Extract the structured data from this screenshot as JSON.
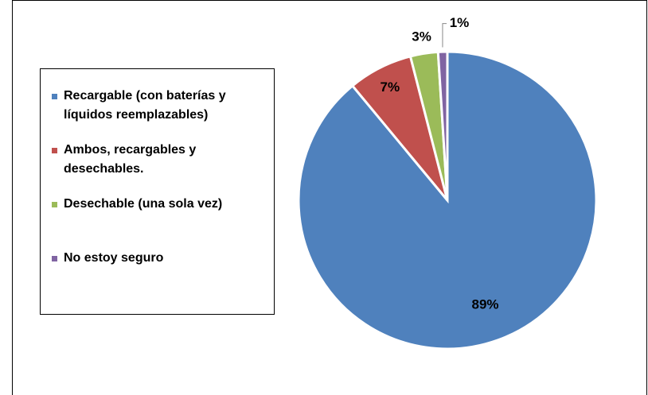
{
  "chart_data": {
    "type": "pie",
    "categories": [
      "Recargable (con baterías y líquidos reemplazables)",
      "Ambos, recargables y desechables.",
      "Desechable (una sola vez)",
      "No estoy seguro"
    ],
    "values": [
      89,
      7,
      3,
      1
    ],
    "value_labels": [
      "89%",
      "7%",
      "3%",
      "1%"
    ],
    "colors": [
      "#4f81bd",
      "#c0504d",
      "#9bbb59",
      "#8064a2"
    ],
    "legend": "left"
  }
}
